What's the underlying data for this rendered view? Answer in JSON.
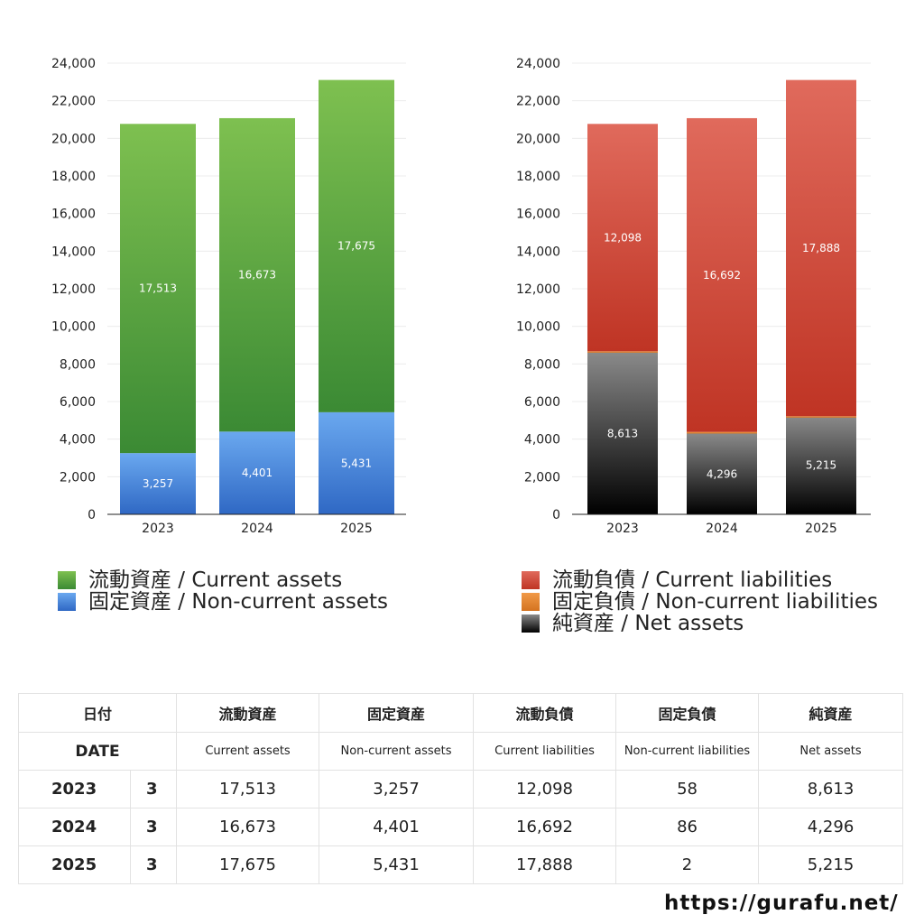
{
  "chart_data": [
    {
      "type": "bar",
      "stacked": true,
      "categories": [
        "2023",
        "2024",
        "2025"
      ],
      "ylim": [
        0,
        24000
      ],
      "yticks": [
        "0",
        "2,000",
        "4,000",
        "6,000",
        "8,000",
        "10,000",
        "12,000",
        "14,000",
        "16,000",
        "18,000",
        "20,000",
        "22,000",
        "24,000"
      ],
      "grid": true,
      "series": [
        {
          "name": "固定資産 / Non-current assets",
          "values": [
            3257,
            4401,
            5431
          ],
          "labels": [
            "3,257",
            "4,401",
            "5,431"
          ],
          "color_top": "#6aa8ef",
          "color_bottom": "#2f68c4"
        },
        {
          "name": "流動資産 / Current assets",
          "values": [
            17513,
            16673,
            17675
          ],
          "labels": [
            "17,513",
            "16,673",
            "17,675"
          ],
          "color_top": "#7ec050",
          "color_bottom": "#3b8a34"
        }
      ]
    },
    {
      "type": "bar",
      "stacked": true,
      "categories": [
        "2023",
        "2024",
        "2025"
      ],
      "ylim": [
        0,
        24000
      ],
      "yticks": [
        "0",
        "2,000",
        "4,000",
        "6,000",
        "8,000",
        "10,000",
        "12,000",
        "14,000",
        "16,000",
        "18,000",
        "20,000",
        "22,000",
        "24,000"
      ],
      "grid": true,
      "series": [
        {
          "name": "純資産 / Net assets",
          "values": [
            8613,
            4296,
            5215
          ],
          "labels": [
            "8,613",
            "4,296",
            "5,215"
          ],
          "color_top": "#8a8a8a",
          "color_bottom": "#000000"
        },
        {
          "name": "固定負債 / Non-current liabilities",
          "values": [
            58,
            86,
            2
          ],
          "labels": [
            "58",
            "86",
            "2"
          ],
          "color_top": "#f19a48",
          "color_bottom": "#d47320"
        },
        {
          "name": "流動負債 / Current liabilities",
          "values": [
            12098,
            16692,
            17888
          ],
          "labels": [
            "12,098",
            "16,692",
            "17,888"
          ],
          "color_top": "#e06a5c",
          "color_bottom": "#bf3424"
        }
      ]
    }
  ],
  "legend_left": [
    "流動資産 / Current assets",
    "固定資産 / Non-current assets"
  ],
  "legend_right": [
    "流動負債 / Current liabilities",
    "固定負債 / Non-current liabilities",
    "純資産 / Net assets"
  ],
  "table": {
    "date_jp": "日付",
    "date_en": "DATE",
    "headers_jp": [
      "流動資産",
      "固定資産",
      "流動負債",
      "固定負債",
      "純資産"
    ],
    "headers_en": [
      "Current assets",
      "Non-current assets",
      "Current liabilities",
      "Non-current liabilities",
      "Net assets"
    ],
    "rows": [
      {
        "year": "2023",
        "month": "3",
        "values": [
          "17,513",
          "3,257",
          "12,098",
          "58",
          "8,613"
        ]
      },
      {
        "year": "2024",
        "month": "3",
        "values": [
          "16,673",
          "4,401",
          "16,692",
          "86",
          "4,296"
        ]
      },
      {
        "year": "2025",
        "month": "3",
        "values": [
          "17,675",
          "5,431",
          "17,888",
          "2",
          "5,215"
        ]
      }
    ]
  },
  "site": "https://gurafu.net/"
}
